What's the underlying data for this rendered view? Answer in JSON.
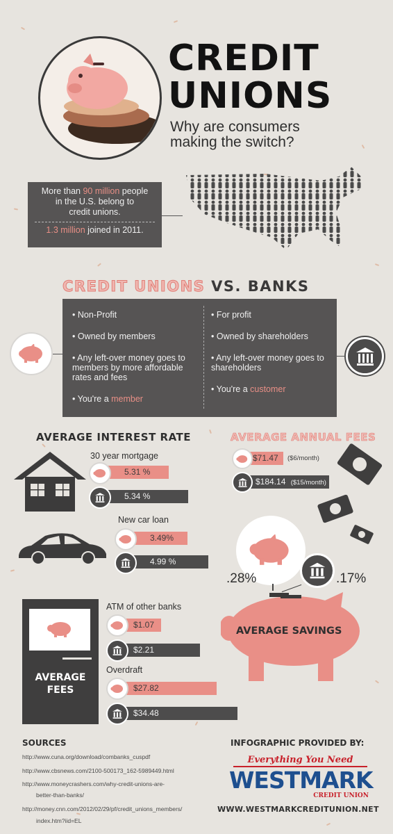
{
  "header": {
    "title_line1": "CREDIT",
    "title_line2": "UNIONS",
    "subtitle_line1": "Why are consumers",
    "subtitle_line2": "making the switch?"
  },
  "stats": {
    "line1_pre": "More than ",
    "line1_highlight": "90 million",
    "line1_post": " people",
    "line2": "in the U.S. belong to",
    "line3": "credit unions.",
    "joined_highlight": "1.3 million",
    "joined_post": " joined in 2011."
  },
  "versus": {
    "left_title": "CREDIT UNIONS",
    "vs": "VS.",
    "right_title": "BANKS",
    "cu_items": [
      "Non-Profit",
      "Owned by members",
      "Any left-over money goes to members by more affordable rates and fees"
    ],
    "cu_last_pre": "You're a ",
    "cu_last_highlight": "member",
    "bank_items": [
      "For profit",
      "Owned by shareholders",
      "Any left-over money goes to shareholders"
    ],
    "bank_last_pre": "You're a ",
    "bank_last_highlight": "customer"
  },
  "interest": {
    "heading": "AVERAGE INTEREST RATE",
    "mortgage_label": "30 year mortgage",
    "mortgage_cu": "5.31 %",
    "mortgage_bank": "5.34 %",
    "car_label": "New car loan",
    "car_cu": "3.49%",
    "car_bank": "4.99 %"
  },
  "annual_fees": {
    "heading": "AVERAGE ANNUAL FEES",
    "cu_value": "$71.47",
    "cu_month": "($6/month)",
    "bank_value": "$184.14",
    "bank_month": "($15/month)"
  },
  "savings": {
    "cu_rate": ".28%",
    "bank_rate": ".17%",
    "label": "AVERAGE SAVINGS"
  },
  "fees": {
    "label_line1": "AVERAGE",
    "label_line2": "FEES",
    "atm_label": "ATM of other banks",
    "atm_cu": "$1.07",
    "atm_bank": "$2.21",
    "overdraft_label": "Overdraft",
    "overdraft_cu": "$27.82",
    "overdraft_bank": "$34.48"
  },
  "sources": {
    "heading": "SOURCES",
    "items": [
      "http://www.cuna.org/download/combanks_cuspdf",
      "http://www.cbsnews.com/2100-500173_162-5989449.html",
      "http://www.moneycrashers.com/why-credit-unions-are-",
      "better-than-banks/",
      "http://money.cnn.com/2012/02/29/pf/credit_unions_members/",
      "index.htm?iid=EL"
    ]
  },
  "provider": {
    "heading": "INFOGRAPHIC PROVIDED BY:",
    "tagline": "Everything You Need",
    "brand": "WESTMARK",
    "brand_sub": "CREDIT UNION",
    "url": "WWW.WESTMARKCREDITUNION.NET"
  },
  "colors": {
    "accent_pink": "#e98f87",
    "dark_gray": "#4d4c4c",
    "brand_blue": "#1e4f8f",
    "brand_red": "#c8202a"
  }
}
